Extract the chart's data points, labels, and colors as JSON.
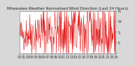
{
  "title": "Milwaukee Weather Normalized Wind Direction (Last 24 Hours)",
  "ylim": [
    0,
    360
  ],
  "yticks": [
    0,
    90,
    180,
    270,
    360
  ],
  "ytick_labels": [
    "",
    "E",
    "S",
    "W",
    "N"
  ],
  "line_color": "#dd0000",
  "background_color": "#d8d8d8",
  "plot_bg_color": "#ffffff",
  "grid_color": "#aaaaaa",
  "title_fontsize": 4.0,
  "tick_fontsize": 3.5,
  "n_points": 288,
  "seed": 42,
  "lw": 0.35
}
